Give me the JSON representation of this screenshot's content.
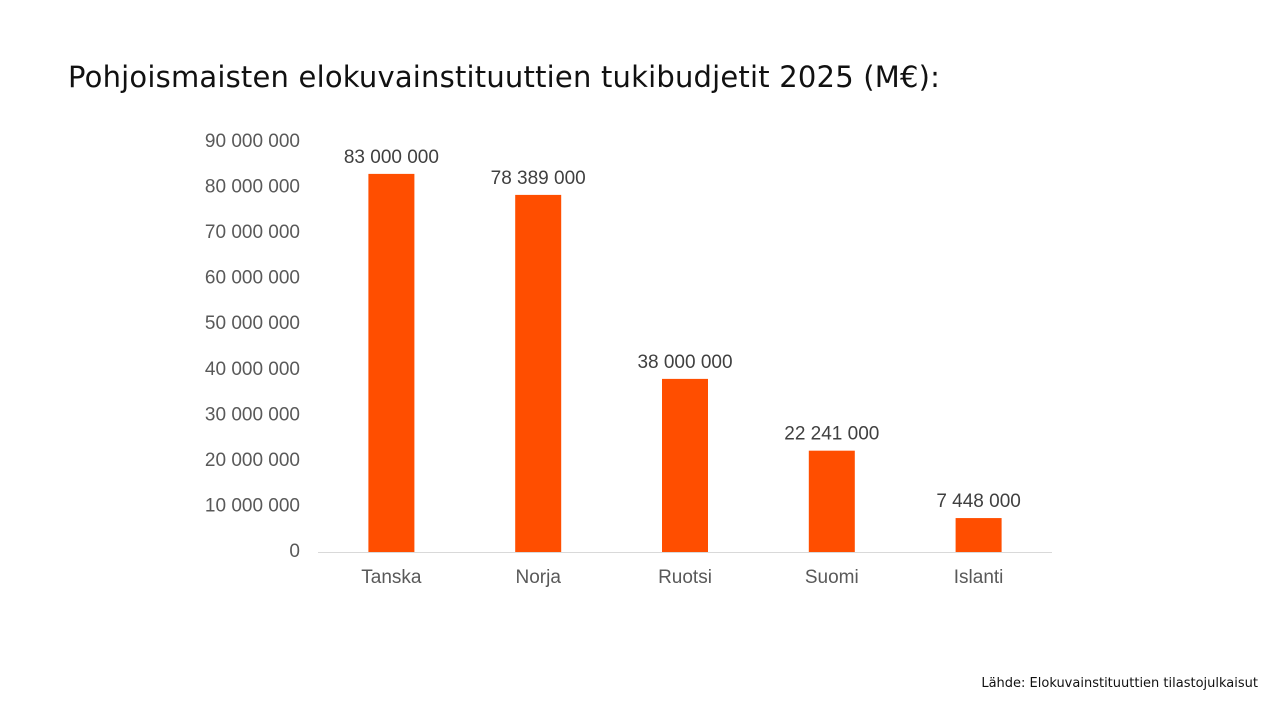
{
  "title": "Pohjoismaisten elokuvainstituuttien tukibudjetit 2025 (M€):",
  "source": "Lähde: Elokuvainstituuttien tilastojulkaisut",
  "colors": {
    "bar": "#FF4E00",
    "axis": "#d9d9d9"
  },
  "chart_data": {
    "type": "bar",
    "categories": [
      "Tanska",
      "Norja",
      "Ruotsi",
      "Suomi",
      "Islanti"
    ],
    "values": [
      83000000,
      78389000,
      38000000,
      22241000,
      7448000
    ],
    "data_labels": [
      "83 000 000",
      "78 389 000",
      "38 000 000",
      "22 241 000",
      "7 448 000"
    ],
    "ylim": [
      0,
      90000000
    ],
    "y_ticks": [
      0,
      10000000,
      20000000,
      30000000,
      40000000,
      50000000,
      60000000,
      70000000,
      80000000,
      90000000
    ],
    "y_tick_labels": [
      "0",
      "10 000 000",
      "20 000 000",
      "30 000 000",
      "40 000 000",
      "50 000 000",
      "60 000 000",
      "70 000 000",
      "80 000 000",
      "90 000 000"
    ],
    "grid": false,
    "legend": "none"
  }
}
